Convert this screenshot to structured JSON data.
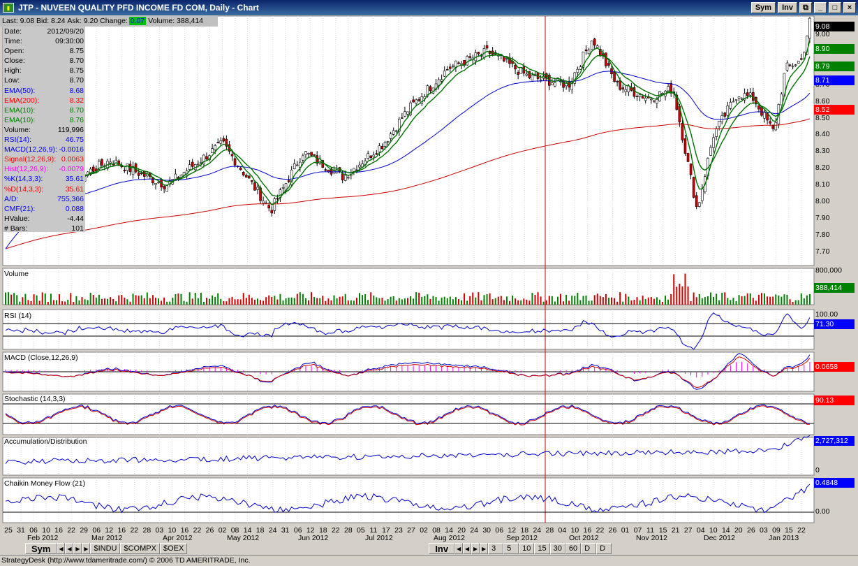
{
  "window": {
    "title": "JTP - NUVEEN QUALITY PFD INCOME FD COM, Daily - Chart",
    "sym_btn": "Sym",
    "inv_btn": "Inv"
  },
  "quote": {
    "last": "Last: 9.08",
    "bid": "Bid: 8.24",
    "ask": "Ask: 9.20",
    "change_label": "Change:",
    "change": "0.07",
    "volume": "Volume: 388,414"
  },
  "data_panel": [
    {
      "label": "Date:",
      "value": "2012/09/20",
      "color": "#000000"
    },
    {
      "label": "Time:",
      "value": "09:30:00",
      "color": "#000000"
    },
    {
      "label": "Open:",
      "value": "8.75",
      "color": "#000000"
    },
    {
      "label": "Close:",
      "value": "8.70",
      "color": "#000000"
    },
    {
      "label": "High:",
      "value": "8.75",
      "color": "#000000"
    },
    {
      "label": "Low:",
      "value": "8.70",
      "color": "#000000"
    },
    {
      "label": "EMA(50):",
      "value": "8.68",
      "color": "#0000ff"
    },
    {
      "label": "EMA(200):",
      "value": "8.32",
      "color": "#ff0000"
    },
    {
      "label": "EMA(10):",
      "value": "8.70",
      "color": "#008000"
    },
    {
      "label": "EMA(10):",
      "value": "8.76",
      "color": "#008000"
    },
    {
      "label": "Volume:",
      "value": "119,996",
      "color": "#000000"
    },
    {
      "label": "RSI(14):",
      "value": "46.75",
      "color": "#0000ff"
    },
    {
      "label": "MACD(12,26,9):",
      "value": "-0.0016",
      "color": "#0000ff"
    },
    {
      "label": "Signal(12,26,9):",
      "value": "0.0063",
      "color": "#ff0000"
    },
    {
      "label": "Hist(12,26,9):",
      "value": "-0.0079",
      "color": "#ff00ff"
    },
    {
      "label": "%K(14,3,3):",
      "value": "35.61",
      "color": "#0000ff"
    },
    {
      "label": "%D(14,3,3):",
      "value": "35.61",
      "color": "#ff0000"
    },
    {
      "label": "A/D:",
      "value": "755,366",
      "color": "#0000ff"
    },
    {
      "label": "CMF(21):",
      "value": "0.088",
      "color": "#0000ff"
    },
    {
      "label": "HValue:",
      "value": "-4.44",
      "color": "#000000"
    },
    {
      "label": "# Bars:",
      "value": "101",
      "color": "#000000"
    }
  ],
  "price_axis": [
    "9.00",
    "8.90",
    "8.80",
    "8.70",
    "8.60",
    "8.50",
    "8.40",
    "8.30",
    "8.20",
    "8.10",
    "8.00",
    "7.90",
    "7.80",
    "7.70"
  ],
  "price_tags": [
    {
      "value": "9.08",
      "bg": "#000000",
      "fg": "#ffffff"
    },
    {
      "value": "8.90",
      "bg": "#008000",
      "fg": "#ffffff"
    },
    {
      "value": "8.79",
      "bg": "#008000",
      "fg": "#ffffff"
    },
    {
      "value": "8.71",
      "bg": "#0000ff",
      "fg": "#ffffff"
    },
    {
      "value": "8.52",
      "bg": "#ff0000",
      "fg": "#ffffff"
    }
  ],
  "panels": {
    "volume": {
      "label": "Volume",
      "axis_top": "800,000",
      "tag": "388,414"
    },
    "rsi": {
      "label": "RSI (14)",
      "axis_top": "100.00",
      "tag": "71.30"
    },
    "macd": {
      "label": "MACD (Close,12,26,9)",
      "tag": "0.0658"
    },
    "stoch": {
      "label": "Stochastic (14,3,3)",
      "tag": "90.13"
    },
    "ad": {
      "label": "Accumulation/Distribution",
      "tag": "2,727,312",
      "axis_bottom": "0"
    },
    "cmf": {
      "label": "Chaikin Money Flow (21)",
      "tag": "0.4848",
      "axis_mid": "0.00"
    }
  },
  "x_days": [
    "25",
    "31",
    "06",
    "10",
    "16",
    "22",
    "29",
    "06",
    "12",
    "16",
    "22",
    "28",
    "03",
    "10",
    "16",
    "22",
    "26",
    "02",
    "08",
    "14",
    "18",
    "24",
    "31",
    "06",
    "12",
    "18",
    "22",
    "28",
    "05",
    "11",
    "17",
    "23",
    "27",
    "02",
    "08",
    "14",
    "20",
    "24",
    "30",
    "06",
    "12",
    "18",
    "24",
    "28",
    "04",
    "10",
    "16",
    "22",
    "26",
    "01",
    "07",
    "11",
    "15",
    "21",
    "27",
    "04",
    "10",
    "14",
    "20",
    "26",
    "03",
    "09",
    "15",
    "22"
  ],
  "x_months": [
    {
      "label": "Feb 2012",
      "pos": 39
    },
    {
      "label": "Mar 2012",
      "pos": 131
    },
    {
      "label": "Apr 2012",
      "pos": 233
    },
    {
      "label": "May 2012",
      "pos": 325
    },
    {
      "label": "Jun 2012",
      "pos": 427
    },
    {
      "label": "Jul 2012",
      "pos": 523
    },
    {
      "label": "Aug 2012",
      "pos": 621
    },
    {
      "label": "Sep 2012",
      "pos": 725
    },
    {
      "label": "Oct 2012",
      "pos": 815
    },
    {
      "label": "Nov 2012",
      "pos": 911
    },
    {
      "label": "Dec 2012",
      "pos": 1008
    },
    {
      "label": "Jan 2013",
      "pos": 1101
    }
  ],
  "bottom_tabs": {
    "sym": "Sym",
    "symbols": [
      "$INDU",
      "$COMPX",
      "$OEX"
    ],
    "inv": "Inv",
    "intervals": [
      "3",
      "5",
      "10",
      "15",
      "30",
      "60",
      "D",
      "D"
    ]
  },
  "status": "StrategyDesk (http://www.tdameritrade.com/) © 2006 TD AMERITRADE, Inc.",
  "colors": {
    "up": "#ffffff",
    "down": "#cc0000",
    "ema50": "#0000cc",
    "ema200": "#cc0000",
    "ema10": "#007000",
    "bg": "#ffffff",
    "cursor": "#cc0000"
  }
}
